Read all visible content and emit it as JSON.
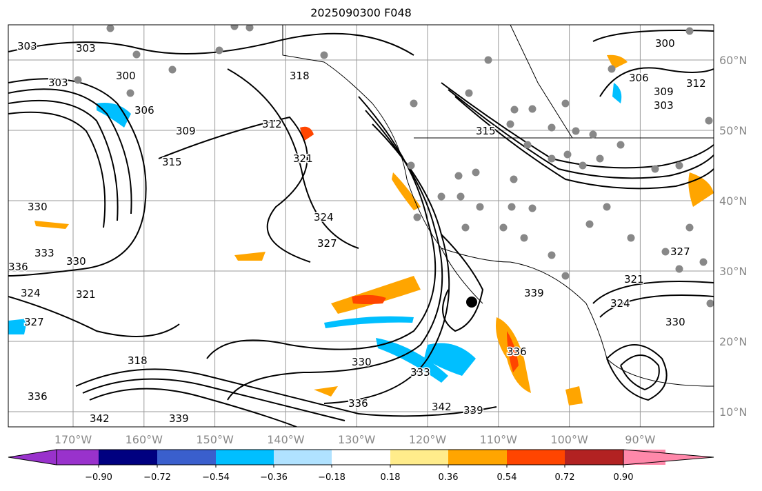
{
  "title": "2025090300 F048",
  "lon_ticks": [
    "170°W",
    "160°W",
    "150°W",
    "140°W",
    "130°W",
    "120°W",
    "110°W",
    "100°W",
    "90°W"
  ],
  "lat_ticks": [
    "60°N",
    "50°N",
    "40°N",
    "30°N",
    "20°N",
    "10°N"
  ],
  "contour_labels": [
    "303",
    "303",
    "300",
    "303",
    "306",
    "309",
    "312",
    "315",
    "318",
    "321",
    "324",
    "327",
    "330",
    "333",
    "336",
    "336",
    "339",
    "342",
    "330",
    "321",
    "324",
    "327",
    "330",
    "333",
    "336",
    "339",
    "342",
    "300",
    "306",
    "309",
    "312",
    "303",
    "327",
    "321",
    "324",
    "330",
    "318",
    "339",
    "336",
    "315"
  ],
  "colorbar": {
    "ticks": [
      "−0.90",
      "−0.72",
      "−0.54",
      "−0.36",
      "−0.18",
      "0.18",
      "0.36",
      "0.54",
      "0.72",
      "0.90"
    ],
    "colors": [
      "#9932CC",
      "#000080",
      "#3A5FCD",
      "#00BFFF",
      "#B0E2FF",
      "#FFFFFF",
      "#FFEC8B",
      "#FFA500",
      "#FF4500",
      "#B22222",
      "#FF88AA"
    ]
  },
  "storm_marker_color": "#000000",
  "station_color": "#888888"
}
